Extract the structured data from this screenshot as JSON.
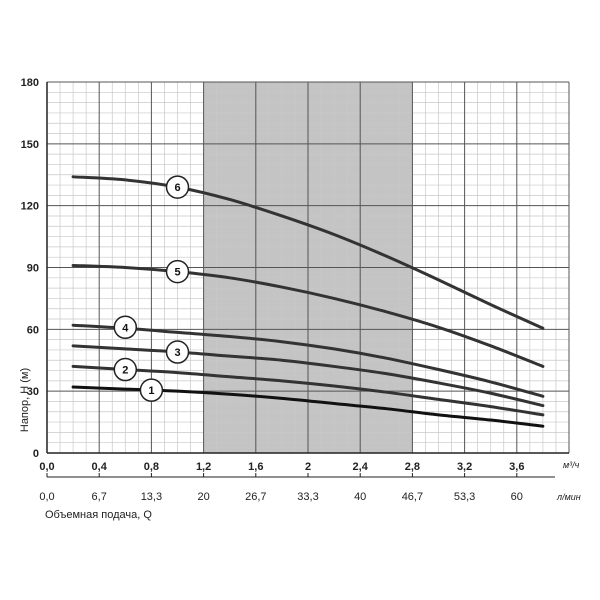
{
  "chart_data": {
    "type": "line",
    "ylabel": "Напор, H (м)",
    "xlabel": "Объемная подача, Q",
    "x_unit": "м³/ч",
    "x2_unit": "л/мин",
    "ylim": [
      0,
      180
    ],
    "xlim": [
      0,
      4
    ],
    "y_ticks": [
      "0",
      "30",
      "60",
      "90",
      "120",
      "150",
      "180"
    ],
    "y_tick_values": [
      0,
      30,
      60,
      90,
      120,
      150,
      180
    ],
    "x_ticks": [
      "0,0",
      "0,4",
      "0,8",
      "1,2",
      "1,6",
      "2",
      "2,4",
      "2,8",
      "3,2",
      "3,6"
    ],
    "x_tick_values": [
      0,
      0.4,
      0.8,
      1.2,
      1.6,
      2.0,
      2.4,
      2.8,
      3.2,
      3.6
    ],
    "x2_ticks": [
      "0,0",
      "6,7",
      "13,3",
      "20",
      "26,7",
      "33,3",
      "40",
      "46,7",
      "53,3",
      "60"
    ],
    "grid": true,
    "working_range": [
      1.2,
      2.8
    ],
    "series": [
      {
        "name": "1",
        "x": [
          0.2,
          0.6,
          1.0,
          1.4,
          1.8,
          2.2,
          2.6,
          3.0,
          3.4,
          3.8
        ],
        "values": [
          32,
          31,
          30,
          28.5,
          26.5,
          24,
          21.5,
          18.5,
          16,
          13
        ],
        "label_at": [
          0.8,
          30.5
        ]
      },
      {
        "name": "2",
        "x": [
          0.2,
          0.6,
          1.0,
          1.4,
          1.8,
          2.2,
          2.6,
          3.0,
          3.4,
          3.8
        ],
        "values": [
          42,
          40.5,
          39,
          37,
          35,
          32.5,
          29.5,
          26,
          22.5,
          18.5
        ],
        "label_at": [
          0.6,
          40.5
        ]
      },
      {
        "name": "3",
        "x": [
          0.2,
          0.6,
          1.0,
          1.4,
          1.8,
          2.2,
          2.6,
          3.0,
          3.4,
          3.8
        ],
        "values": [
          52,
          50.5,
          49,
          47,
          45,
          42,
          38.5,
          34,
          29,
          23
        ],
        "label_at": [
          1.0,
          49
        ]
      },
      {
        "name": "4",
        "x": [
          0.2,
          0.6,
          1.0,
          1.4,
          1.8,
          2.2,
          2.6,
          3.0,
          3.4,
          3.8
        ],
        "values": [
          62,
          60.5,
          58.5,
          56.5,
          54,
          50.5,
          46,
          40.5,
          34.5,
          27.5
        ],
        "label_at": [
          0.6,
          61
        ]
      },
      {
        "name": "5",
        "x": [
          0.2,
          0.6,
          1.0,
          1.4,
          1.8,
          2.2,
          2.6,
          3.0,
          3.4,
          3.8
        ],
        "values": [
          91,
          90,
          88,
          85,
          80.5,
          75,
          68.5,
          61,
          52,
          42
        ],
        "label_at": [
          1.0,
          88
        ]
      },
      {
        "name": "6",
        "x": [
          0.2,
          0.6,
          1.0,
          1.4,
          1.8,
          2.2,
          2.6,
          3.0,
          3.4,
          3.8
        ],
        "values": [
          134,
          132.5,
          129,
          123,
          115,
          106,
          95.5,
          84,
          72,
          60.5
        ],
        "label_at": [
          1.0,
          129
        ]
      }
    ]
  },
  "colors": {
    "curve": "#333333",
    "curve1": "#111111",
    "grid_major": "#555555",
    "grid_minor": "#c8c8c8",
    "shade": "#c4c4c4",
    "axis": "#222222"
  }
}
